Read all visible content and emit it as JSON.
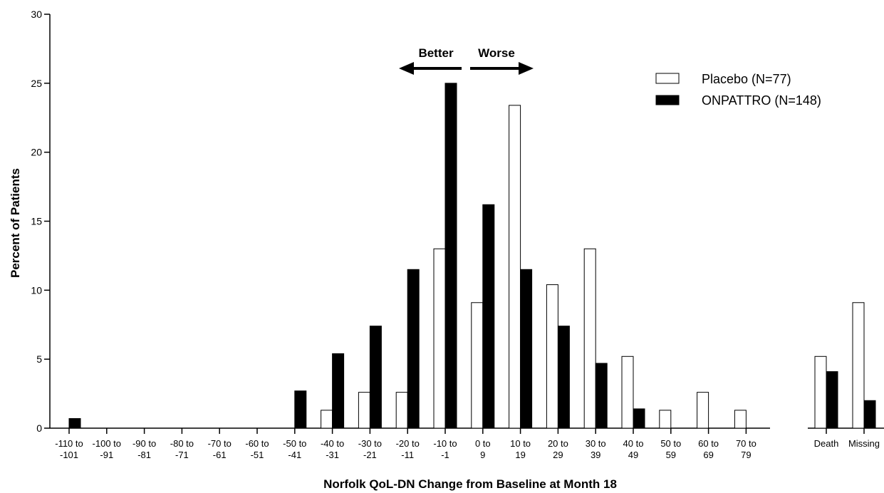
{
  "chart_data": {
    "type": "bar",
    "xlabel": "Norfolk QoL-DN Change from Baseline at Month 18",
    "ylabel": "Percent of Patients",
    "ylim": [
      0,
      30
    ],
    "yticks": [
      "0",
      "5",
      "10",
      "15",
      "20",
      "25",
      "30"
    ],
    "grid": false,
    "legend_position": "top-right",
    "direction_labels": {
      "better": "Better",
      "worse": "Worse"
    },
    "categories": [
      {
        "line1": "-110 to",
        "line2": "-101"
      },
      {
        "line1": "-100 to",
        "line2": "-91"
      },
      {
        "line1": "-90 to",
        "line2": "-81"
      },
      {
        "line1": "-80 to",
        "line2": "-71"
      },
      {
        "line1": "-70 to",
        "line2": "-61"
      },
      {
        "line1": "-60 to",
        "line2": "-51"
      },
      {
        "line1": "-50 to",
        "line2": "-41"
      },
      {
        "line1": "-40 to",
        "line2": "-31"
      },
      {
        "line1": "-30 to",
        "line2": "-21"
      },
      {
        "line1": "-20 to",
        "line2": "-11"
      },
      {
        "line1": "-10 to",
        "line2": "-1"
      },
      {
        "line1": "0 to",
        "line2": "9"
      },
      {
        "line1": "10 to",
        "line2": "19"
      },
      {
        "line1": "20 to",
        "line2": "29"
      },
      {
        "line1": "30 to",
        "line2": "39"
      },
      {
        "line1": "40 to",
        "line2": "49"
      },
      {
        "line1": "50 to",
        "line2": "59"
      },
      {
        "line1": "60 to",
        "line2": "69"
      },
      {
        "line1": "70 to",
        "line2": "79"
      }
    ],
    "extra_categories": [
      "Death",
      "Missing"
    ],
    "series": [
      {
        "name": "Placebo (N=77)",
        "color": "#ffffff",
        "values": [
          0,
          0,
          0,
          0,
          0,
          0,
          0,
          1.3,
          2.6,
          2.6,
          13.0,
          9.1,
          23.4,
          10.4,
          13.0,
          5.2,
          1.3,
          2.6,
          1.3
        ],
        "extra_values": [
          5.2,
          9.1
        ]
      },
      {
        "name": "ONPATTRO (N=148)",
        "color": "#000000",
        "values": [
          0.7,
          0,
          0,
          0,
          0,
          0,
          2.7,
          5.4,
          7.4,
          11.5,
          25.0,
          16.2,
          11.5,
          7.4,
          4.7,
          1.4,
          0,
          0,
          0
        ],
        "extra_values": [
          4.1,
          2.0
        ]
      }
    ]
  }
}
